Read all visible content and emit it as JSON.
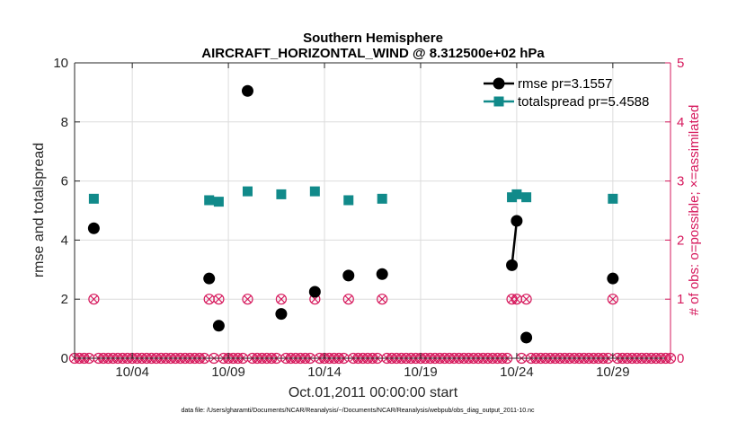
{
  "chart_data": {
    "type": "line",
    "title": "Southern Hemisphere",
    "subtitle": "AIRCRAFT_HORIZONTAL_WIND @ 8.312500e+02 hPa",
    "xlabel": "Oct.01,2011 00:00:00 start",
    "ylabel": "rmse and totalspread",
    "y2label": "# of obs: o=possible; ×=assimilated",
    "footnote": "data file: /Users/gharamti/Documents/NCAR/Reanalysis/~/Documents/NCAR/Reanalysis/webpub/obs_diag_output_2011-10.nc",
    "xlim": [
      1,
      32
    ],
    "ylim": [
      0,
      10
    ],
    "y2lim": [
      0,
      5
    ],
    "x_ticks": [
      {
        "value": 4,
        "label": "10/04"
      },
      {
        "value": 9,
        "label": "10/09"
      },
      {
        "value": 14,
        "label": "10/14"
      },
      {
        "value": 19,
        "label": "10/19"
      },
      {
        "value": 24,
        "label": "10/24"
      },
      {
        "value": 29,
        "label": "10/29"
      }
    ],
    "y_ticks": [
      "0",
      "2",
      "4",
      "6",
      "8",
      "10"
    ],
    "y2_ticks": [
      "0",
      "1",
      "2",
      "3",
      "4",
      "5"
    ],
    "grid": true,
    "legend_position": "top-right",
    "series": [
      {
        "name": "rmse pr=3.1557",
        "color": "#000000",
        "marker": "circle",
        "points": [
          [
            2.0,
            4.4
          ],
          [
            8.0,
            2.7
          ],
          [
            8.5,
            1.1
          ],
          [
            10.0,
            9.05
          ],
          [
            11.75,
            1.5
          ],
          [
            13.5,
            2.25
          ],
          [
            15.25,
            2.8
          ],
          [
            17.0,
            2.85
          ],
          [
            23.75,
            3.15
          ],
          [
            24.0,
            4.65
          ],
          [
            24.5,
            0.7
          ],
          [
            29.0,
            2.7
          ]
        ],
        "segments": [
          [
            8,
            9
          ]
        ]
      },
      {
        "name": "totalspread pr=5.4588",
        "color": "#118a8a",
        "marker": "square",
        "points": [
          [
            2.0,
            5.4
          ],
          [
            8.0,
            5.35
          ],
          [
            8.5,
            5.3
          ],
          [
            10.0,
            5.65
          ],
          [
            11.75,
            5.55
          ],
          [
            13.5,
            5.65
          ],
          [
            15.25,
            5.35
          ],
          [
            17.0,
            5.4
          ],
          [
            23.75,
            5.45
          ],
          [
            24.0,
            5.55
          ],
          [
            24.5,
            5.45
          ],
          [
            29.0,
            5.4
          ]
        ],
        "segments": [
          [
            8,
            9
          ]
        ]
      }
    ],
    "obs_counts": {
      "color": "#d6185c",
      "x_start": 1.0,
      "x_end": 32.0,
      "x_step": 0.25,
      "nonzero": [
        [
          2.0,
          1
        ],
        [
          8.0,
          1
        ],
        [
          8.5,
          1
        ],
        [
          10.0,
          1
        ],
        [
          11.75,
          1
        ],
        [
          13.5,
          1
        ],
        [
          15.25,
          1
        ],
        [
          17.0,
          1
        ],
        [
          23.75,
          1
        ],
        [
          24.0,
          1
        ],
        [
          24.5,
          1
        ],
        [
          29.0,
          1
        ]
      ]
    }
  }
}
